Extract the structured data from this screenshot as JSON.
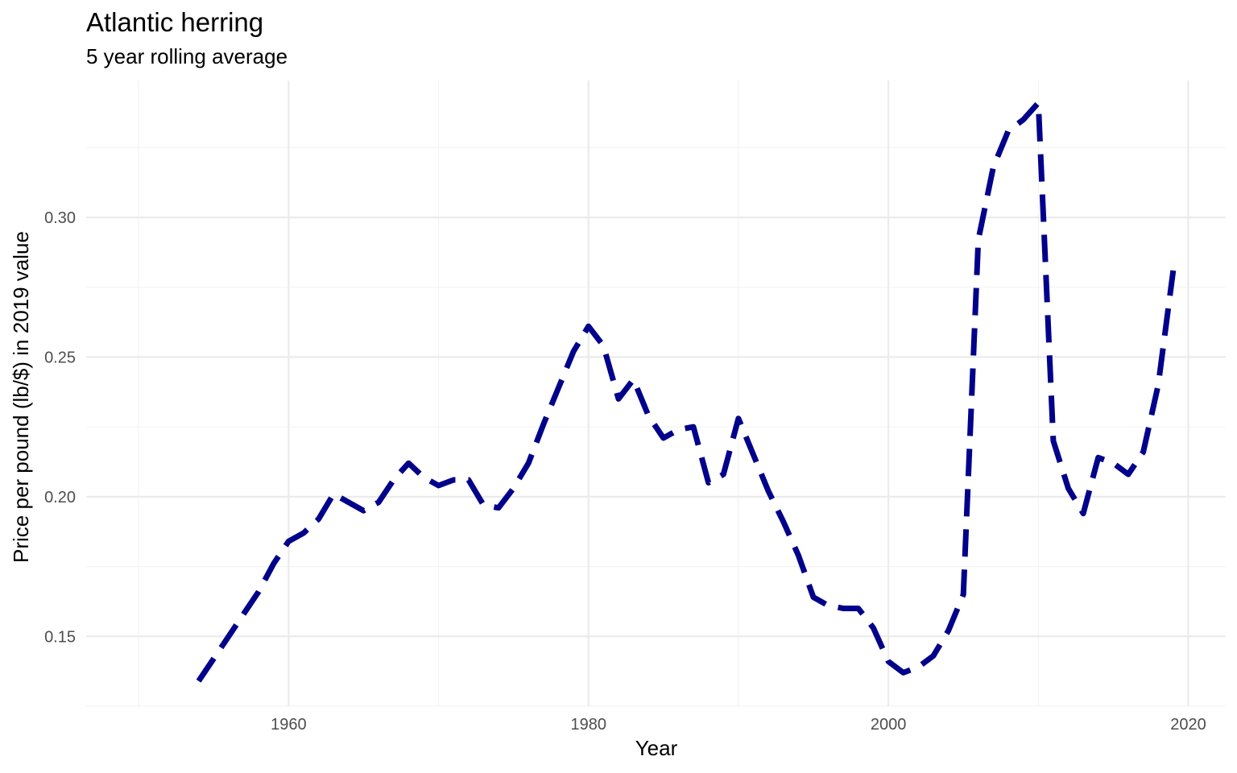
{
  "chart_data": {
    "type": "line",
    "title": "Atlantic herring",
    "subtitle": "5 year rolling average",
    "xlabel": "Year",
    "ylabel": "Price per pound (lb/$) in 2019 value",
    "xlim": [
      1946.5,
      2022.5
    ],
    "ylim": [
      0.125,
      0.349
    ],
    "x_ticks": [
      1960,
      1980,
      2000,
      2020
    ],
    "x_tick_labels": [
      "1960",
      "1980",
      "2000",
      "2020"
    ],
    "x_minor_ticks": [
      1950,
      1970,
      1990,
      2010
    ],
    "y_ticks": [
      0.15,
      0.2,
      0.25,
      0.3
    ],
    "y_tick_labels": [
      "0.15",
      "0.20",
      "0.25",
      "0.30"
    ],
    "y_minor_ticks": [
      0.125,
      0.175,
      0.225,
      0.275,
      0.325
    ],
    "grid": true,
    "legend": "none",
    "series": [
      {
        "color": "#00008B",
        "line_style": "dashed",
        "x": [
          1954,
          1955,
          1956,
          1957,
          1958,
          1959,
          1960,
          1961,
          1962,
          1963,
          1964,
          1965,
          1966,
          1967,
          1968,
          1969,
          1970,
          1971,
          1972,
          1973,
          1974,
          1975,
          1976,
          1977,
          1978,
          1979,
          1980,
          1981,
          1982,
          1983,
          1984,
          1985,
          1986,
          1987,
          1988,
          1989,
          1990,
          1991,
          1992,
          1993,
          1994,
          1995,
          1996,
          1997,
          1998,
          1999,
          2000,
          2001,
          2002,
          2003,
          2004,
          2005,
          2006,
          2007,
          2008,
          2009,
          2010,
          2011,
          2012,
          2013,
          2014,
          2015,
          2016,
          2017,
          2018,
          2019
        ],
        "y": [
          0.134,
          0.142,
          0.15,
          0.158,
          0.166,
          0.176,
          0.184,
          0.187,
          0.192,
          0.201,
          0.198,
          0.195,
          0.198,
          0.206,
          0.212,
          0.207,
          0.204,
          0.206,
          0.206,
          0.197,
          0.196,
          0.203,
          0.212,
          0.226,
          0.239,
          0.252,
          0.261,
          0.254,
          0.235,
          0.242,
          0.229,
          0.221,
          0.224,
          0.225,
          0.205,
          0.208,
          0.228,
          0.215,
          0.202,
          0.191,
          0.179,
          0.164,
          0.161,
          0.16,
          0.16,
          0.153,
          0.141,
          0.137,
          0.139,
          0.143,
          0.152,
          0.165,
          0.292,
          0.318,
          0.331,
          0.335,
          0.341,
          0.22,
          0.203,
          0.194,
          0.214,
          0.212,
          0.208,
          0.216,
          0.24,
          0.281
        ]
      }
    ]
  }
}
